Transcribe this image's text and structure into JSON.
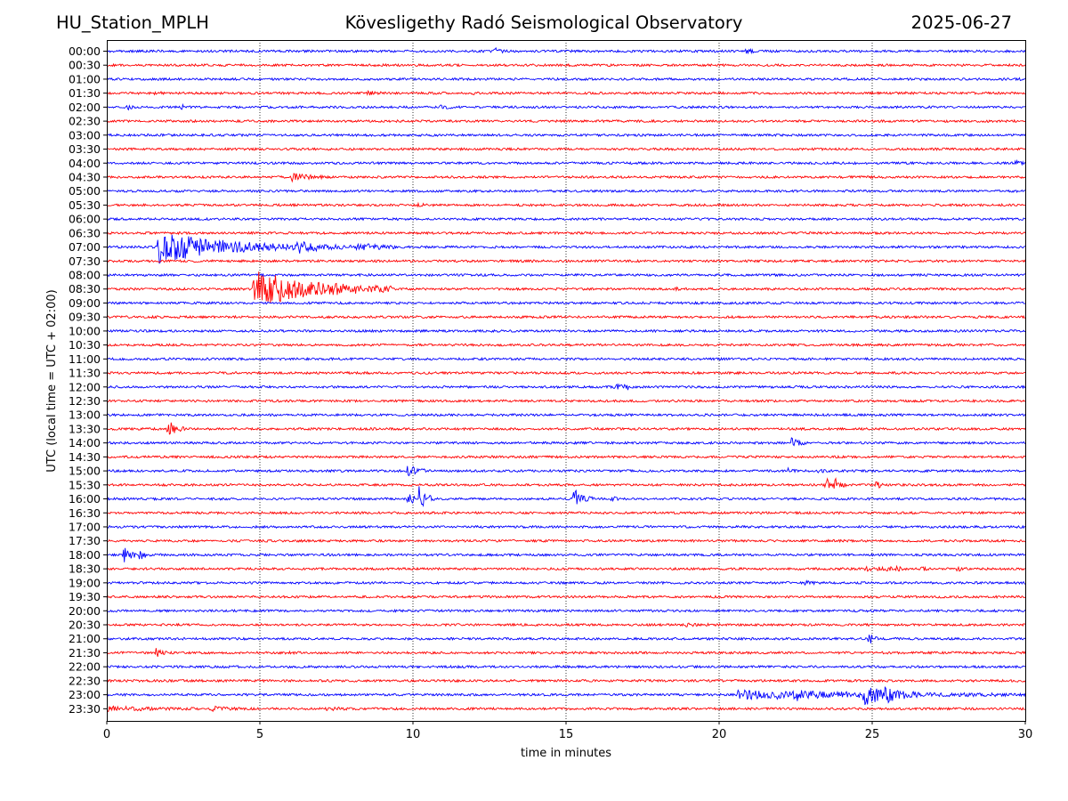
{
  "header": {
    "station": "HU_Station_MPLH",
    "title": "Kövesligethy Radó Seismological Observatory",
    "date": "2025-06-27"
  },
  "chart_data": {
    "type": "line",
    "title": "Kövesligethy Radó Seismological Observatory",
    "xlabel": "time in minutes",
    "ylabel": "UTC (local time = UTC + 02:00)",
    "xlim": [
      0,
      30
    ],
    "x_ticks": [
      "0",
      "5",
      "10",
      "15",
      "20",
      "25",
      "30"
    ],
    "x_tick_values": [
      0,
      5,
      10,
      15,
      20,
      25,
      30
    ],
    "grid": "vertical dotted at 5-minute ticks",
    "series_colors": [
      "#0000ff",
      "#ff0000"
    ],
    "traces": [
      "00:00",
      "00:30",
      "01:00",
      "01:30",
      "02:00",
      "02:30",
      "03:00",
      "03:30",
      "04:00",
      "04:30",
      "05:00",
      "05:30",
      "06:00",
      "06:30",
      "07:00",
      "07:30",
      "08:00",
      "08:30",
      "09:00",
      "09:30",
      "10:00",
      "10:30",
      "11:00",
      "11:30",
      "12:00",
      "12:30",
      "13:00",
      "13:30",
      "14:00",
      "14:30",
      "15:00",
      "15:30",
      "16:00",
      "16:30",
      "17:00",
      "17:30",
      "18:00",
      "18:30",
      "19:00",
      "19:30",
      "20:00",
      "20:30",
      "21:00",
      "21:30",
      "22:00",
      "22:30",
      "23:00",
      "23:30"
    ],
    "events": [
      {
        "trace": "00:00",
        "t": 12.7,
        "amp": 2.5,
        "dur": 0.4
      },
      {
        "trace": "00:00",
        "t": 20.85,
        "amp": 3.5,
        "dur": 0.3
      },
      {
        "trace": "01:00",
        "t": 29.6,
        "amp": 1.5,
        "dur": 0.3
      },
      {
        "trace": "01:30",
        "t": 1.6,
        "amp": 1.6,
        "dur": 0.3
      },
      {
        "trace": "01:30",
        "t": 5.1,
        "amp": 1.5,
        "dur": 0.2
      },
      {
        "trace": "01:30",
        "t": 8.55,
        "amp": 3.0,
        "dur": 0.4
      },
      {
        "trace": "01:30",
        "t": 11.9,
        "amp": 1.4,
        "dur": 0.2
      },
      {
        "trace": "01:30",
        "t": 26.1,
        "amp": 1.6,
        "dur": 0.3
      },
      {
        "trace": "02:00",
        "t": 0.7,
        "amp": 2.2,
        "dur": 0.2
      },
      {
        "trace": "02:00",
        "t": 2.45,
        "amp": 4.0,
        "dur": 0.15
      },
      {
        "trace": "02:00",
        "t": 10.9,
        "amp": 2.0,
        "dur": 0.4
      },
      {
        "trace": "04:00",
        "t": 29.7,
        "amp": 2.5,
        "dur": 0.3
      },
      {
        "trace": "04:30",
        "t": 6.05,
        "amp": 4.5,
        "dur": 1.0
      },
      {
        "trace": "05:30",
        "t": 10.15,
        "amp": 1.8,
        "dur": 0.5
      },
      {
        "trace": "07:00",
        "t": 1.7,
        "amp": 18.0,
        "dur": 4.5
      },
      {
        "trace": "07:00",
        "t": 6.2,
        "amp": 7.0,
        "dur": 1.8
      },
      {
        "trace": "07:00",
        "t": 8.2,
        "amp": 4.0,
        "dur": 1.5
      },
      {
        "trace": "08:30",
        "t": 4.8,
        "amp": 20.0,
        "dur": 4.5
      },
      {
        "trace": "08:30",
        "t": 18.6,
        "amp": 2.0,
        "dur": 0.15
      },
      {
        "trace": "12:00",
        "t": 16.6,
        "amp": 4.0,
        "dur": 0.4
      },
      {
        "trace": "12:00",
        "t": 16.95,
        "amp": 4.0,
        "dur": 0.3
      },
      {
        "trace": "13:30",
        "t": 2.0,
        "amp": 9.0,
        "dur": 0.6
      },
      {
        "trace": "14:00",
        "t": 22.35,
        "amp": 5.0,
        "dur": 0.5
      },
      {
        "trace": "15:00",
        "t": 9.8,
        "amp": 6.0,
        "dur": 0.8
      },
      {
        "trace": "15:00",
        "t": 22.25,
        "amp": 2.8,
        "dur": 0.25
      },
      {
        "trace": "15:00",
        "t": 23.25,
        "amp": 2.8,
        "dur": 0.3
      },
      {
        "trace": "15:30",
        "t": 23.5,
        "amp": 7.0,
        "dur": 0.4
      },
      {
        "trace": "15:30",
        "t": 23.8,
        "amp": 10.0,
        "dur": 0.4
      },
      {
        "trace": "15:30",
        "t": 25.1,
        "amp": 4.0,
        "dur": 0.4
      },
      {
        "trace": "16:00",
        "t": 9.85,
        "amp": 7.0,
        "dur": 0.4
      },
      {
        "trace": "16:00",
        "t": 10.2,
        "amp": 15.0,
        "dur": 0.5
      },
      {
        "trace": "16:00",
        "t": 15.25,
        "amp": 18.0,
        "dur": 0.4
      },
      {
        "trace": "16:00",
        "t": 15.65,
        "amp": 3.5,
        "dur": 0.5
      },
      {
        "trace": "16:00",
        "t": 16.45,
        "amp": 3.0,
        "dur": 0.3
      },
      {
        "trace": "18:00",
        "t": 0.55,
        "amp": 12.0,
        "dur": 0.4
      },
      {
        "trace": "18:00",
        "t": 1.05,
        "amp": 6.0,
        "dur": 0.4
      },
      {
        "trace": "18:30",
        "t": 24.8,
        "amp": 3.0,
        "dur": 0.3
      },
      {
        "trace": "18:30",
        "t": 25.2,
        "amp": 3.0,
        "dur": 0.3
      },
      {
        "trace": "18:30",
        "t": 25.5,
        "amp": 3.0,
        "dur": 0.3
      },
      {
        "trace": "18:30",
        "t": 25.8,
        "amp": 2.5,
        "dur": 0.3
      },
      {
        "trace": "18:30",
        "t": 26.6,
        "amp": 2.5,
        "dur": 0.2
      },
      {
        "trace": "18:30",
        "t": 27.8,
        "amp": 3.0,
        "dur": 0.3
      },
      {
        "trace": "19:00",
        "t": 22.8,
        "amp": 1.5,
        "dur": 0.5
      },
      {
        "trace": "20:30",
        "t": 18.9,
        "amp": 1.5,
        "dur": 0.8
      },
      {
        "trace": "21:00",
        "t": 24.9,
        "amp": 7.0,
        "dur": 0.3
      },
      {
        "trace": "21:30",
        "t": 1.6,
        "amp": 4.5,
        "dur": 0.4
      },
      {
        "trace": "21:30",
        "t": 5.8,
        "amp": 1.3,
        "dur": 0.6
      },
      {
        "trace": "23:00",
        "t": 20.6,
        "amp": 5.0,
        "dur": 9.4
      },
      {
        "trace": "23:00",
        "t": 22.55,
        "amp": 9.0,
        "dur": 0.4
      },
      {
        "trace": "23:00",
        "t": 24.75,
        "amp": 13.0,
        "dur": 1.5
      },
      {
        "trace": "23:00",
        "t": 25.4,
        "amp": 9.0,
        "dur": 1.5
      },
      {
        "trace": "23:30",
        "t": 0.0,
        "amp": 2.5,
        "dur": 3.0
      },
      {
        "trace": "23:30",
        "t": 3.35,
        "amp": 2.5,
        "dur": 1.0
      },
      {
        "trace": "23:30",
        "t": 7.2,
        "amp": 2.0,
        "dur": 0.8
      }
    ]
  }
}
